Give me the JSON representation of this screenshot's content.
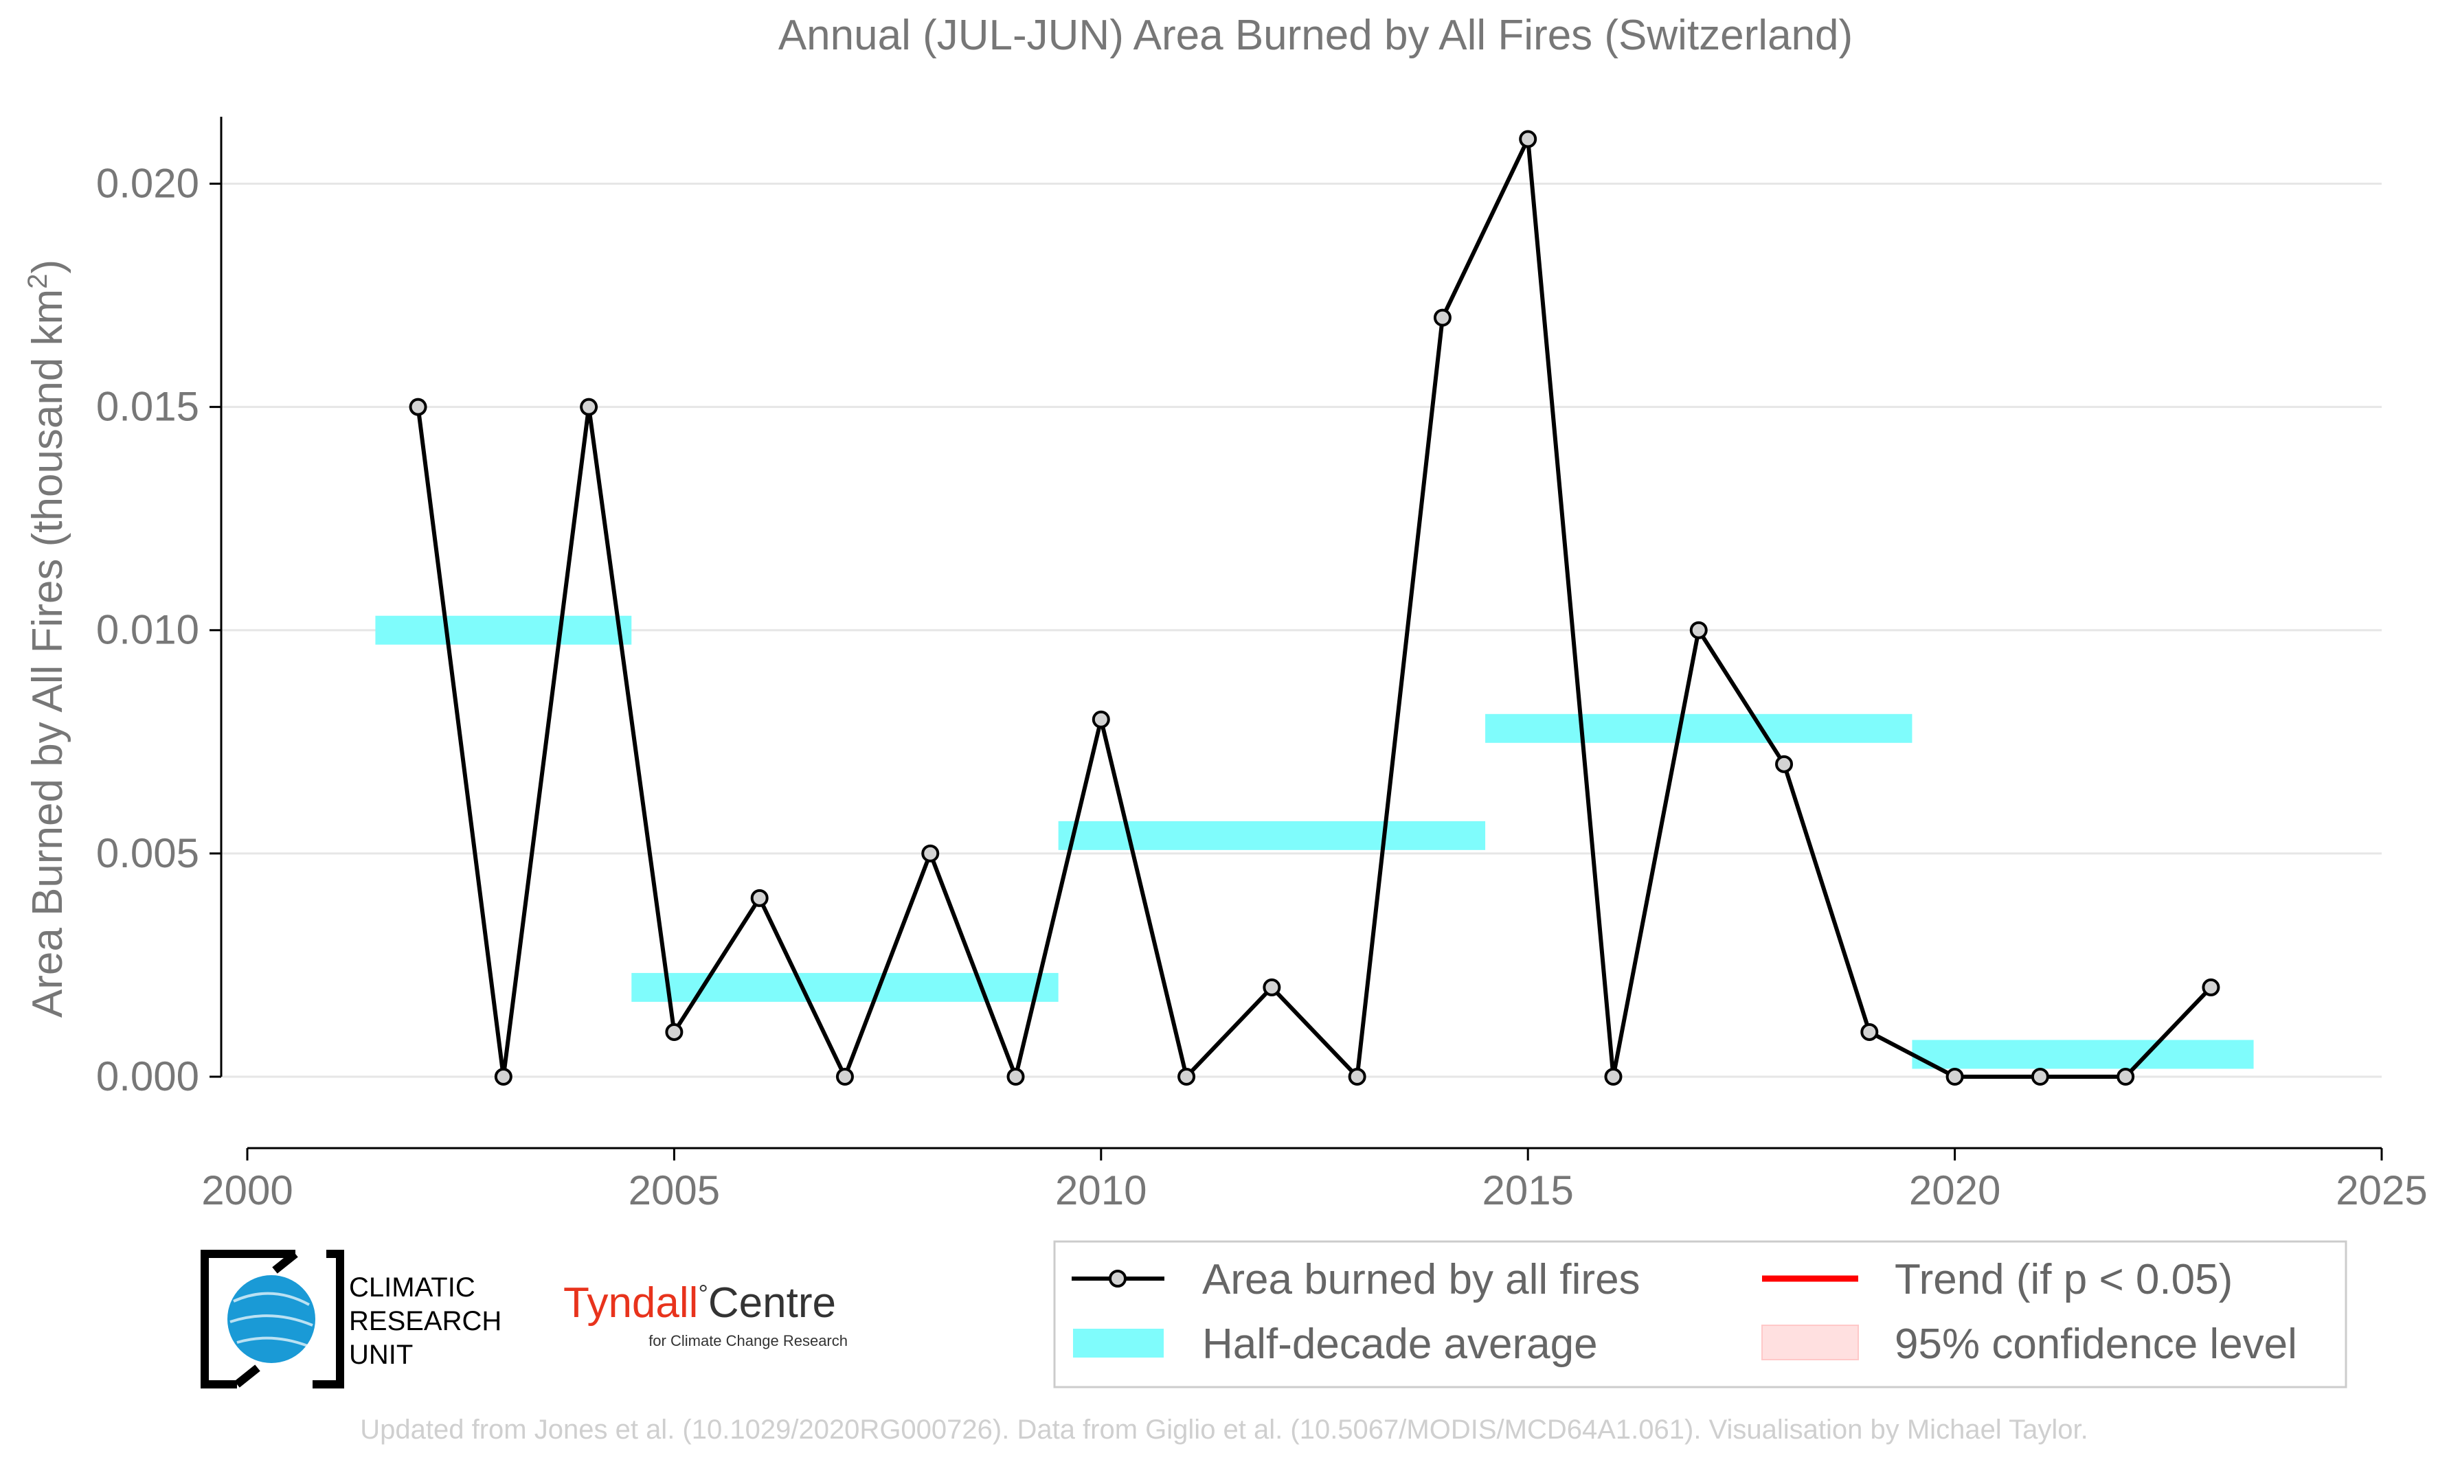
{
  "chart_data": {
    "type": "line",
    "title": "Annual (JUL-JUN) Area Burned by All Fires (Switzerland)",
    "ylabel_main": "Area Burned by All Fires (thousand km",
    "ylabel_sup": "2",
    "ylabel_close": ")",
    "xlabel": "",
    "xlim": [
      2000,
      2025
    ],
    "ylim": [
      -0.0016,
      0.0215
    ],
    "x_ticks": [
      2000,
      2005,
      2010,
      2015,
      2020,
      2025
    ],
    "x_tick_labels": [
      "2000",
      "2005",
      "2010",
      "2015",
      "2020",
      "2025"
    ],
    "y_ticks": [
      0.0,
      0.005,
      0.01,
      0.015,
      0.02
    ],
    "y_tick_labels": [
      "0.000",
      "0.005",
      "0.010",
      "0.015",
      "0.020"
    ],
    "grid": "horizontal",
    "series": [
      {
        "name": "Area burned by all fires",
        "color": "#000000",
        "marker_fill": "#d3d3d3",
        "x": [
          2002,
          2003,
          2004,
          2005,
          2006,
          2007,
          2008,
          2009,
          2010,
          2011,
          2012,
          2013,
          2014,
          2015,
          2016,
          2017,
          2018,
          2019,
          2020,
          2021,
          2022,
          2023
        ],
        "y": [
          0.015,
          0.0,
          0.015,
          0.001,
          0.004,
          0.0,
          0.005,
          0.0,
          0.008,
          0.0,
          0.002,
          0.0,
          0.017,
          0.021,
          0.0,
          0.01,
          0.007,
          0.001,
          0.0,
          0.0,
          0.0,
          0.002
        ]
      }
    ],
    "half_decade_averages": {
      "name": "Half-decade average",
      "color": "#7ffcfc",
      "segments": [
        {
          "x_start": 2001.5,
          "x_end": 2004.5,
          "value": 0.01
        },
        {
          "x_start": 2004.5,
          "x_end": 2009.5,
          "value": 0.002
        },
        {
          "x_start": 2009.5,
          "x_end": 2014.5,
          "value": 0.0054
        },
        {
          "x_start": 2014.5,
          "x_end": 2019.5,
          "value": 0.0078
        },
        {
          "x_start": 2019.5,
          "x_end": 2023.5,
          "value": 0.0005
        }
      ]
    },
    "legend": {
      "placement": "bottom-right",
      "entries": [
        {
          "label": "Area burned by all fires",
          "kind": "line-marker",
          "color": "#000000"
        },
        {
          "label": "Trend (if p < 0.05)",
          "kind": "line",
          "color": "#ff0000"
        },
        {
          "label": "Half-decade average",
          "kind": "band",
          "color": "#7ffcfc"
        },
        {
          "label": "95% confidence level",
          "kind": "patch",
          "color": "#ffe0e0"
        }
      ]
    }
  },
  "logos": {
    "cru_lines": [
      "CLIMATIC",
      "RESEARCH",
      "UNIT"
    ],
    "tyndall_name": "Tyndall",
    "tyndall_degree": "°",
    "tyndall_centre": "Centre",
    "tyndall_sub": "for Climate Change Research"
  },
  "footer": "Updated from Jones et al. (10.1029/2020RG000726). Data from Giglio et al. (10.5067/MODIS/MCD64A1.061). Visualisation by Michael Taylor."
}
